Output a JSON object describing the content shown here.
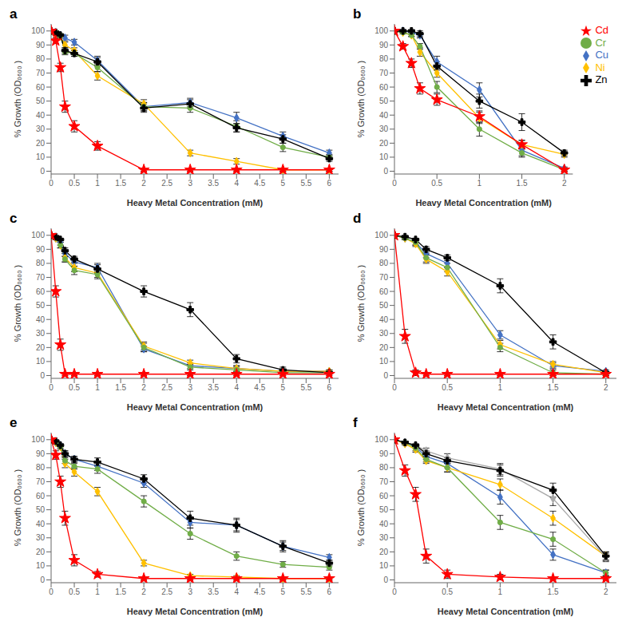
{
  "chart_data": [
    {
      "type": "line",
      "title": "a",
      "xlabel": "Heavy Metal Concentration (mM)",
      "ylabel": "% Growth (OD₀₆₀₀ )",
      "x": [
        0,
        0.1,
        0.2,
        0.3,
        0.5,
        1.0,
        2.0,
        3.0,
        4.0,
        5.0,
        6.0
      ],
      "xlim": [
        0,
        6.2
      ],
      "xticks": [
        0,
        0.5,
        1,
        1.5,
        2,
        2.5,
        3,
        3.5,
        4,
        4.5,
        5,
        5.5,
        6
      ],
      "ylim": [
        -2,
        105
      ],
      "yticks": [
        0,
        10,
        20,
        30,
        40,
        50,
        60,
        70,
        80,
        90,
        100
      ],
      "series": [
        {
          "name": "Cu",
          "color": "#4472C4",
          "marker": "diamond",
          "values": [
            100,
            99,
            97,
            95,
            92,
            79,
            46,
            49,
            38,
            25,
            13
          ],
          "errors": [
            0,
            1,
            1,
            2,
            2,
            3,
            3,
            3,
            4,
            3,
            2
          ]
        },
        {
          "name": "Ni",
          "color": "#FFC000",
          "marker": "diamond",
          "values": [
            100,
            98,
            96,
            90,
            86,
            68,
            48,
            13,
            7,
            1,
            1
          ],
          "errors": [
            0,
            1,
            1,
            2,
            2,
            3,
            3,
            2,
            2,
            1,
            1
          ]
        },
        {
          "name": "Cr",
          "color": "#70AD47",
          "marker": "circle",
          "values": [
            100,
            99,
            97,
            85,
            84,
            74,
            46,
            45,
            32,
            17,
            10
          ],
          "errors": [
            0,
            1,
            1,
            2,
            2,
            3,
            3,
            3,
            4,
            3,
            2
          ]
        },
        {
          "name": "Zn",
          "color": "#000000",
          "marker": "plus",
          "values": [
            100,
            99,
            97,
            86,
            84,
            78,
            45,
            48,
            31,
            23,
            9
          ],
          "errors": [
            0,
            1,
            1,
            2,
            2,
            3,
            3,
            3,
            3,
            3,
            2
          ]
        },
        {
          "name": "Cd",
          "color": "#FF0000",
          "marker": "star",
          "values": [
            100,
            93,
            74,
            46,
            32,
            18,
            1,
            1,
            1,
            1,
            1
          ],
          "errors": [
            0,
            2,
            3,
            4,
            4,
            3,
            1,
            1,
            1,
            1,
            1
          ]
        }
      ]
    },
    {
      "type": "line",
      "title": "b",
      "xlabel": "Heavy Metal Concentration (mM)",
      "ylabel": "% Growth (OD₀₆₀₀ )",
      "x": [
        0,
        0.1,
        0.2,
        0.3,
        0.5,
        1.0,
        1.5,
        2.0
      ],
      "xlim": [
        0,
        2.1
      ],
      "xticks": [
        0,
        0.5,
        1,
        1.5,
        2
      ],
      "ylim": [
        -2,
        105
      ],
      "yticks": [
        0,
        10,
        20,
        30,
        40,
        50,
        60,
        70,
        80,
        90,
        100
      ],
      "legend": "upper right",
      "series": [
        {
          "name": "Cu",
          "color": "#4472C4",
          "marker": "diamond",
          "values": [
            100,
            100,
            99,
            97,
            78,
            58,
            15,
            2
          ],
          "errors": [
            0,
            1,
            1,
            2,
            4,
            5,
            4,
            1
          ]
        },
        {
          "name": "Ni",
          "color": "#FFC000",
          "marker": "diamond",
          "values": [
            100,
            99,
            97,
            85,
            70,
            38,
            19,
            12
          ],
          "errors": [
            0,
            1,
            1,
            3,
            3,
            4,
            3,
            2
          ]
        },
        {
          "name": "Cr",
          "color": "#70AD47",
          "marker": "circle",
          "values": [
            100,
            99,
            97,
            89,
            60,
            30,
            13,
            1
          ],
          "errors": [
            0,
            1,
            1,
            2,
            4,
            5,
            3,
            1
          ]
        },
        {
          "name": "Zn",
          "color": "#000000",
          "marker": "plus",
          "values": [
            100,
            100,
            100,
            98,
            75,
            50,
            35,
            13
          ],
          "errors": [
            0,
            1,
            1,
            2,
            3,
            5,
            6,
            2
          ]
        },
        {
          "name": "Cd",
          "color": "#FF0000",
          "marker": "star",
          "values": [
            100,
            89,
            77,
            59,
            51,
            39,
            19,
            1
          ],
          "errors": [
            0,
            2,
            3,
            4,
            4,
            4,
            3,
            1
          ]
        }
      ]
    },
    {
      "type": "line",
      "title": "c",
      "xlabel": "Heavy Metal Concentration (mM)",
      "ylabel": "% Growth (OD₀₆₀₀ )",
      "x": [
        0,
        0.1,
        0.2,
        0.3,
        0.5,
        1.0,
        2.0,
        3.0,
        4.0,
        5.0,
        6.0
      ],
      "xlim": [
        0,
        6.2
      ],
      "xticks": [
        0,
        0.5,
        1,
        1.5,
        2,
        2.5,
        3,
        3.5,
        4,
        4.5,
        5,
        5.5,
        6
      ],
      "ylim": [
        -2,
        105
      ],
      "yticks": [
        0,
        10,
        20,
        30,
        40,
        50,
        60,
        70,
        80,
        90,
        100
      ],
      "series": [
        {
          "name": "Cu",
          "color": "#4472C4",
          "marker": "diamond",
          "values": [
            100,
            98,
            95,
            87,
            81,
            77,
            19,
            7,
            5,
            3,
            3
          ],
          "errors": [
            0,
            1,
            2,
            2,
            3,
            3,
            2,
            2,
            2,
            1,
            1
          ]
        },
        {
          "name": "Ni",
          "color": "#FFC000",
          "marker": "diamond",
          "values": [
            100,
            98,
            93,
            84,
            77,
            73,
            21,
            9,
            5,
            3,
            3
          ],
          "errors": [
            0,
            1,
            2,
            3,
            3,
            3,
            3,
            2,
            2,
            1,
            1
          ]
        },
        {
          "name": "Cr",
          "color": "#70AD47",
          "marker": "circle",
          "values": [
            100,
            98,
            93,
            83,
            75,
            72,
            20,
            6,
            4,
            2,
            2
          ],
          "errors": [
            0,
            1,
            2,
            2,
            3,
            3,
            3,
            2,
            2,
            1,
            1
          ]
        },
        {
          "name": "Zn",
          "color": "#000000",
          "marker": "plus",
          "values": [
            100,
            99,
            97,
            89,
            83,
            76,
            60,
            47,
            12,
            4,
            2
          ],
          "errors": [
            0,
            1,
            1,
            2,
            2,
            3,
            4,
            5,
            3,
            2,
            1
          ]
        },
        {
          "name": "Cd",
          "color": "#FF0000",
          "marker": "star",
          "values": [
            100,
            60,
            22,
            1,
            1,
            1,
            1,
            1,
            1,
            1,
            1
          ],
          "errors": [
            0,
            4,
            4,
            1,
            1,
            1,
            1,
            1,
            1,
            1,
            1
          ]
        }
      ]
    },
    {
      "type": "line",
      "title": "d",
      "xlabel": "Heavy Metal Concentration (mM)",
      "ylabel": "% Growth (OD₀₆₀₀ )",
      "x": [
        0,
        0.1,
        0.2,
        0.3,
        0.5,
        1.0,
        1.5,
        2.0
      ],
      "xlim": [
        0,
        2.1
      ],
      "xticks": [
        0,
        0.5,
        1,
        1.5,
        2
      ],
      "ylim": [
        -2,
        105
      ],
      "yticks": [
        0,
        10,
        20,
        30,
        40,
        50,
        60,
        70,
        80,
        90,
        100
      ],
      "series": [
        {
          "name": "Cu",
          "color": "#4472C4",
          "marker": "diamond",
          "values": [
            100,
            98,
            95,
            87,
            80,
            29,
            7,
            3
          ],
          "errors": [
            0,
            1,
            2,
            3,
            3,
            3,
            2,
            1
          ]
        },
        {
          "name": "Ni",
          "color": "#FFC000",
          "marker": "diamond",
          "values": [
            100,
            98,
            94,
            83,
            74,
            22,
            8,
            2
          ],
          "errors": [
            0,
            1,
            2,
            3,
            3,
            3,
            2,
            1
          ]
        },
        {
          "name": "Cr",
          "color": "#70AD47",
          "marker": "circle",
          "values": [
            100,
            98,
            95,
            84,
            77,
            20,
            2,
            1
          ],
          "errors": [
            0,
            1,
            2,
            3,
            3,
            3,
            2,
            1
          ]
        },
        {
          "name": "Zn",
          "color": "#000000",
          "marker": "plus",
          "values": [
            100,
            99,
            97,
            90,
            84,
            64,
            24,
            2
          ],
          "errors": [
            0,
            1,
            1,
            2,
            2,
            5,
            5,
            1
          ]
        },
        {
          "name": "Cd",
          "color": "#FF0000",
          "marker": "star",
          "values": [
            100,
            28,
            2,
            1,
            1,
            1,
            1,
            1
          ],
          "errors": [
            0,
            5,
            2,
            1,
            1,
            1,
            1,
            1
          ]
        }
      ]
    },
    {
      "type": "line",
      "title": "e",
      "xlabel": "Heavy Metal Concentration (mM)",
      "ylabel": "% Growth (OD₀₆₀₀ )",
      "x": [
        0,
        0.1,
        0.2,
        0.3,
        0.5,
        1.0,
        2.0,
        3.0,
        4.0,
        5.0,
        6.0
      ],
      "xlim": [
        0,
        6.2
      ],
      "xticks": [
        0,
        0.5,
        1,
        1.5,
        2,
        2.5,
        3,
        3.5,
        4,
        4.5,
        5,
        5.5,
        6
      ],
      "ylim": [
        -2,
        105
      ],
      "yticks": [
        0,
        10,
        20,
        30,
        40,
        50,
        60,
        70,
        80,
        90,
        100
      ],
      "series": [
        {
          "name": "Cu",
          "color": "#4472C4",
          "marker": "diamond",
          "values": [
            100,
            98,
            96,
            90,
            86,
            81,
            69,
            41,
            39,
            24,
            16
          ],
          "errors": [
            0,
            1,
            1,
            2,
            2,
            3,
            3,
            4,
            4,
            3,
            2
          ]
        },
        {
          "name": "Ni",
          "color": "#FFC000",
          "marker": "diamond",
          "values": [
            100,
            98,
            95,
            83,
            77,
            63,
            12,
            3,
            2,
            1,
            1
          ],
          "errors": [
            0,
            1,
            2,
            3,
            3,
            3,
            2,
            1,
            1,
            1,
            1
          ]
        },
        {
          "name": "Cr",
          "color": "#70AD47",
          "marker": "circle",
          "values": [
            100,
            98,
            95,
            85,
            81,
            79,
            56,
            33,
            17,
            11,
            9
          ],
          "errors": [
            0,
            1,
            1,
            2,
            2,
            3,
            4,
            4,
            3,
            2,
            2
          ]
        },
        {
          "name": "Zn",
          "color": "#000000",
          "marker": "plus",
          "values": [
            100,
            99,
            96,
            90,
            86,
            84,
            72,
            44,
            39,
            24,
            12
          ],
          "errors": [
            0,
            1,
            1,
            2,
            2,
            3,
            3,
            5,
            5,
            4,
            2
          ]
        },
        {
          "name": "Cd",
          "color": "#FF0000",
          "marker": "star",
          "values": [
            100,
            89,
            70,
            44,
            14,
            4,
            1,
            1,
            1,
            1,
            1
          ],
          "errors": [
            0,
            3,
            4,
            5,
            4,
            2,
            1,
            1,
            1,
            1,
            1
          ]
        }
      ]
    },
    {
      "type": "line",
      "title": "f",
      "xlabel": "Heavy Metal Concentration (mM)",
      "ylabel": "% Growth (OD₀₆₀₀ )",
      "x": [
        0,
        0.1,
        0.2,
        0.3,
        0.5,
        1.0,
        1.5,
        2.0
      ],
      "xlim": [
        0,
        2.1
      ],
      "xticks": [
        0,
        0.5,
        1,
        1.5,
        2
      ],
      "ylim": [
        -2,
        105
      ],
      "yticks": [
        0,
        10,
        20,
        30,
        40,
        50,
        60,
        70,
        80,
        90,
        100
      ],
      "series": [
        {
          "name": "Cu",
          "color": "#4472C4",
          "marker": "diamond",
          "values": [
            100,
            98,
            95,
            88,
            83,
            59,
            18,
            5
          ],
          "errors": [
            0,
            1,
            1,
            2,
            3,
            5,
            4,
            2
          ]
        },
        {
          "name": "Ni",
          "color": "#FFC000",
          "marker": "diamond",
          "values": [
            100,
            97,
            93,
            85,
            80,
            68,
            44,
            17
          ],
          "errors": [
            0,
            1,
            2,
            2,
            3,
            4,
            5,
            3
          ]
        },
        {
          "name": "Cr",
          "color": "#70AD47",
          "marker": "circle",
          "values": [
            100,
            98,
            94,
            86,
            80,
            41,
            29,
            5
          ],
          "errors": [
            0,
            1,
            2,
            2,
            3,
            5,
            5,
            2
          ]
        },
        {
          "color": "#A9A9A9",
          "marker": "diamond",
          "values": [
            100,
            98,
            96,
            92,
            87,
            79,
            58,
            16
          ],
          "errors": [
            0,
            1,
            1,
            2,
            3,
            4,
            5,
            3
          ]
        },
        {
          "name": "Zn",
          "color": "#000000",
          "marker": "plus",
          "values": [
            100,
            98,
            96,
            90,
            85,
            78,
            64,
            17
          ],
          "errors": [
            0,
            1,
            1,
            2,
            2,
            4,
            5,
            3
          ]
        },
        {
          "name": "Cd",
          "color": "#FF0000",
          "marker": "star",
          "values": [
            100,
            78,
            61,
            17,
            4,
            2,
            1,
            1
          ],
          "errors": [
            0,
            4,
            5,
            5,
            3,
            2,
            1,
            1
          ]
        }
      ]
    }
  ]
}
